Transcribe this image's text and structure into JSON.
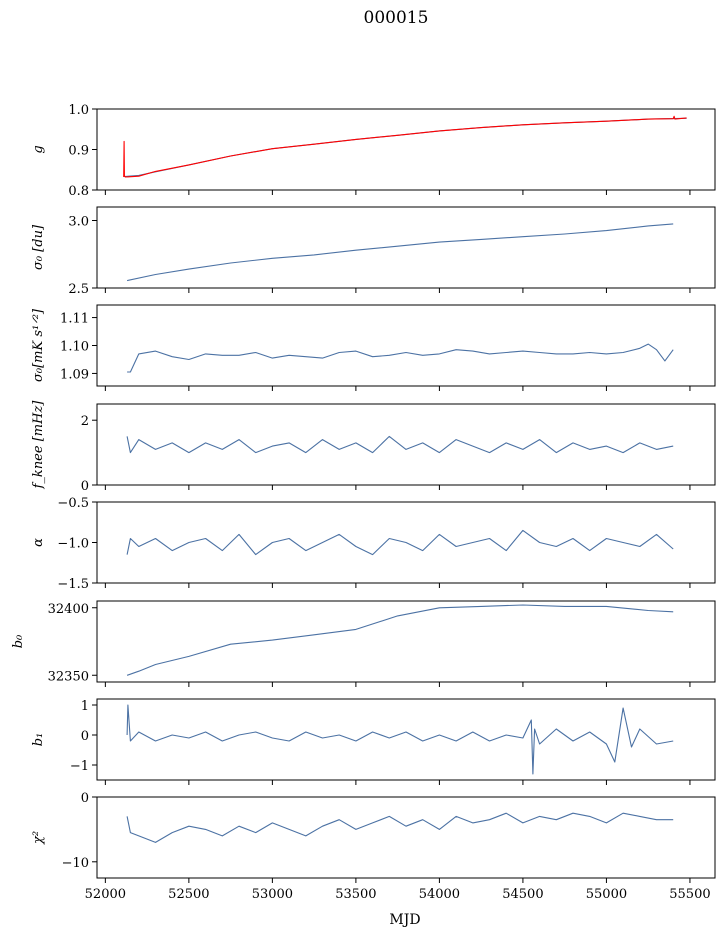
{
  "title": "000015",
  "xlabel": "MJD",
  "colors": {
    "primary": "#4c72a4",
    "fit": "#ff0000",
    "axes": "#000000"
  },
  "chart_data": {
    "type": "line",
    "title": "000015",
    "xlabel": "MJD",
    "xlim": [
      51950,
      55650
    ],
    "xticks": [
      52000,
      52500,
      53000,
      53500,
      54000,
      54500,
      55000,
      55500
    ],
    "xtick_labels": [
      "52000",
      "52500",
      "53000",
      "53500",
      "54000",
      "54500",
      "55000",
      "55500"
    ],
    "grid": false,
    "panels": [
      {
        "key": "g",
        "ylabel": "g",
        "ylim": [
          0.8,
          1.0
        ],
        "yticks": [
          0.8,
          0.9,
          1.0
        ],
        "ytick_labels": [
          "0.8",
          "0.9",
          "1.0"
        ],
        "series": [
          {
            "color": "#4c72a4",
            "x": [
              52110,
              52200,
              52300,
              52500,
              52750,
              53000,
              53250,
              53500,
              53750,
              54000,
              54250,
              54500,
              54750,
              55000,
              55250,
              55480
            ],
            "y": [
              0.833,
              0.836,
              0.845,
              0.862,
              0.884,
              0.902,
              0.913,
              0.925,
              0.935,
              0.946,
              0.954,
              0.961,
              0.966,
              0.97,
              0.975,
              0.977
            ]
          },
          {
            "color": "#ff0000",
            "x": [
              52110,
              52112,
              52114,
              52120,
              52200,
              52300,
              52500,
              52750,
              53000,
              53250,
              53500,
              53750,
              54000,
              54250,
              54500,
              54750,
              55000,
              55250,
              55400,
              55405,
              55410,
              55480
            ],
            "y": [
              0.832,
              0.92,
              0.835,
              0.832,
              0.834,
              0.846,
              0.862,
              0.884,
              0.902,
              0.913,
              0.925,
              0.935,
              0.946,
              0.954,
              0.961,
              0.966,
              0.97,
              0.975,
              0.976,
              0.982,
              0.975,
              0.978
            ]
          }
        ]
      },
      {
        "key": "sigma0du",
        "ylabel": "σ₀ [du]",
        "ylim": [
          2.5,
          3.1
        ],
        "yticks": [
          2.5,
          3.0
        ],
        "ytick_labels": [
          "2.5",
          "3.0"
        ],
        "series": [
          {
            "color": "#4c72a4",
            "x": [
              52130,
              52300,
              52500,
              52750,
              53000,
              53250,
              53500,
              53750,
              54000,
              54250,
              54500,
              54750,
              55000,
              55250,
              55400
            ],
            "y": [
              2.555,
              2.6,
              2.64,
              2.685,
              2.72,
              2.745,
              2.78,
              2.81,
              2.84,
              2.86,
              2.88,
              2.9,
              2.925,
              2.96,
              2.975
            ]
          }
        ]
      },
      {
        "key": "sigma0mk",
        "ylabel": "σ₀[mK s¹ᐟ²]",
        "ylim": [
          1.0855,
          1.1145
        ],
        "yticks": [
          1.09,
          1.1,
          1.11
        ],
        "ytick_labels": [
          "1.09",
          "1.10",
          "1.11"
        ],
        "series": [
          {
            "color": "#4c72a4",
            "x": [
              52130,
              52150,
              52200,
              52300,
              52400,
              52500,
              52600,
              52700,
              52800,
              52900,
              53000,
              53100,
              53200,
              53300,
              53400,
              53500,
              53600,
              53700,
              53800,
              53900,
              54000,
              54100,
              54200,
              54300,
              54400,
              54500,
              54600,
              54700,
              54800,
              54900,
              55000,
              55100,
              55200,
              55250,
              55300,
              55350,
              55400
            ],
            "y": [
              1.0905,
              1.0905,
              1.097,
              1.098,
              1.096,
              1.095,
              1.097,
              1.0965,
              1.0965,
              1.0975,
              1.0955,
              1.0965,
              1.096,
              1.0955,
              1.0975,
              1.098,
              1.096,
              1.0965,
              1.0975,
              1.0965,
              1.097,
              1.0985,
              1.098,
              1.097,
              1.0975,
              1.098,
              1.0975,
              1.097,
              1.097,
              1.0975,
              1.097,
              1.0975,
              1.099,
              1.1005,
              1.0985,
              1.0945,
              1.0985
            ]
          }
        ]
      },
      {
        "key": "fknee",
        "ylabel": "f_knee [mHz]",
        "ylim": [
          0,
          2.5
        ],
        "yticks": [
          0,
          2
        ],
        "ytick_labels": [
          "0",
          "2"
        ],
        "series": [
          {
            "color": "#4c72a4",
            "x": [
              52130,
              52150,
              52200,
              52300,
              52400,
              52500,
              52600,
              52700,
              52800,
              52900,
              53000,
              53100,
              53200,
              53300,
              53400,
              53500,
              53600,
              53700,
              53800,
              53900,
              54000,
              54100,
              54200,
              54300,
              54400,
              54500,
              54600,
              54700,
              54800,
              54900,
              55000,
              55100,
              55200,
              55300,
              55400
            ],
            "y": [
              1.5,
              1.0,
              1.4,
              1.1,
              1.3,
              1.0,
              1.3,
              1.1,
              1.4,
              1.0,
              1.2,
              1.3,
              1.0,
              1.4,
              1.1,
              1.3,
              1.0,
              1.5,
              1.1,
              1.3,
              1.0,
              1.4,
              1.2,
              1.0,
              1.3,
              1.1,
              1.4,
              1.0,
              1.3,
              1.1,
              1.2,
              1.0,
              1.3,
              1.1,
              1.2
            ]
          }
        ]
      },
      {
        "key": "alpha",
        "ylabel": "α",
        "ylim": [
          -1.5,
          -0.5
        ],
        "yticks": [
          -1.5,
          -1.0,
          -0.5
        ],
        "ytick_labels": [
          "−1.5",
          "−1.0",
          "−0.5"
        ],
        "series": [
          {
            "color": "#4c72a4",
            "x": [
              52130,
              52150,
              52200,
              52300,
              52400,
              52500,
              52600,
              52700,
              52800,
              52900,
              53000,
              53100,
              53200,
              53300,
              53400,
              53500,
              53600,
              53700,
              53800,
              53900,
              54000,
              54100,
              54200,
              54300,
              54400,
              54500,
              54600,
              54700,
              54800,
              54900,
              55000,
              55100,
              55200,
              55300,
              55400
            ],
            "y": [
              -1.15,
              -0.95,
              -1.05,
              -0.95,
              -1.1,
              -1.0,
              -0.95,
              -1.1,
              -0.9,
              -1.15,
              -1.0,
              -0.95,
              -1.1,
              -1.0,
              -0.9,
              -1.05,
              -1.15,
              -0.95,
              -1.0,
              -1.1,
              -0.9,
              -1.05,
              -1.0,
              -0.95,
              -1.1,
              -0.85,
              -1.0,
              -1.05,
              -0.95,
              -1.1,
              -0.95,
              -1.0,
              -1.05,
              -0.9,
              -1.08
            ]
          }
        ]
      },
      {
        "key": "b0",
        "ylabel": "b₀",
        "ylim": [
          32345,
          32405
        ],
        "yticks": [
          32350,
          32400
        ],
        "ytick_labels": [
          "32350",
          "32400"
        ],
        "series": [
          {
            "color": "#4c72a4",
            "x": [
              52130,
              52200,
              52300,
              52500,
              52750,
              53000,
              53250,
              53500,
              53750,
              54000,
              54250,
              54500,
              54750,
              55000,
              55250,
              55400
            ],
            "y": [
              32350,
              32353,
              32358,
              32364,
              32373,
              32376,
              32380,
              32384,
              32394,
              32400,
              32401,
              32402,
              32401,
              32401,
              32398,
              32397
            ]
          }
        ]
      },
      {
        "key": "b1",
        "ylabel": "b₁",
        "ylim": [
          -1.5,
          1.2
        ],
        "yticks": [
          -1,
          0,
          1
        ],
        "ytick_labels": [
          "−1",
          "0",
          "1"
        ],
        "series": [
          {
            "color": "#4c72a4",
            "x": [
              52130,
              52135,
              52150,
              52200,
              52300,
              52400,
              52500,
              52600,
              52700,
              52800,
              52900,
              53000,
              53100,
              53200,
              53300,
              53400,
              53500,
              53600,
              53700,
              53800,
              53900,
              54000,
              54100,
              54200,
              54300,
              54400,
              54500,
              54550,
              54560,
              54570,
              54600,
              54700,
              54800,
              54900,
              55000,
              55050,
              55100,
              55150,
              55200,
              55300,
              55400
            ],
            "y": [
              0.0,
              1.0,
              -0.2,
              0.1,
              -0.2,
              0.0,
              -0.1,
              0.1,
              -0.2,
              0.0,
              0.1,
              -0.1,
              -0.2,
              0.1,
              -0.1,
              0.0,
              -0.2,
              0.1,
              -0.1,
              0.1,
              -0.2,
              0.0,
              -0.2,
              0.1,
              -0.2,
              0.0,
              -0.1,
              0.5,
              -1.3,
              0.2,
              -0.3,
              0.2,
              -0.2,
              0.1,
              -0.3,
              -0.9,
              0.9,
              -0.4,
              0.2,
              -0.3,
              -0.2
            ]
          }
        ]
      },
      {
        "key": "chi2",
        "ylabel": "χ²",
        "ylim": [
          -12.5,
          0
        ],
        "yticks": [
          -10,
          0
        ],
        "ytick_labels": [
          "−10",
          "0"
        ],
        "series": [
          {
            "color": "#4c72a4",
            "x": [
              52130,
              52150,
              52200,
              52300,
              52400,
              52500,
              52600,
              52700,
              52800,
              52900,
              53000,
              53100,
              53200,
              53300,
              53400,
              53500,
              53600,
              53700,
              53800,
              53900,
              54000,
              54100,
              54200,
              54300,
              54400,
              54500,
              54600,
              54700,
              54800,
              54900,
              55000,
              55100,
              55200,
              55300,
              55400
            ],
            "y": [
              -3.0,
              -5.5,
              -6.0,
              -7.0,
              -5.5,
              -4.5,
              -5.0,
              -6.0,
              -4.5,
              -5.5,
              -4.0,
              -5.0,
              -6.0,
              -4.5,
              -3.5,
              -5.0,
              -4.0,
              -3.0,
              -4.5,
              -3.5,
              -5.0,
              -3.0,
              -4.0,
              -3.5,
              -2.5,
              -4.0,
              -3.0,
              -3.5,
              -2.5,
              -3.0,
              -4.0,
              -2.5,
              -3.0,
              -3.5,
              -3.5
            ]
          }
        ]
      }
    ]
  }
}
